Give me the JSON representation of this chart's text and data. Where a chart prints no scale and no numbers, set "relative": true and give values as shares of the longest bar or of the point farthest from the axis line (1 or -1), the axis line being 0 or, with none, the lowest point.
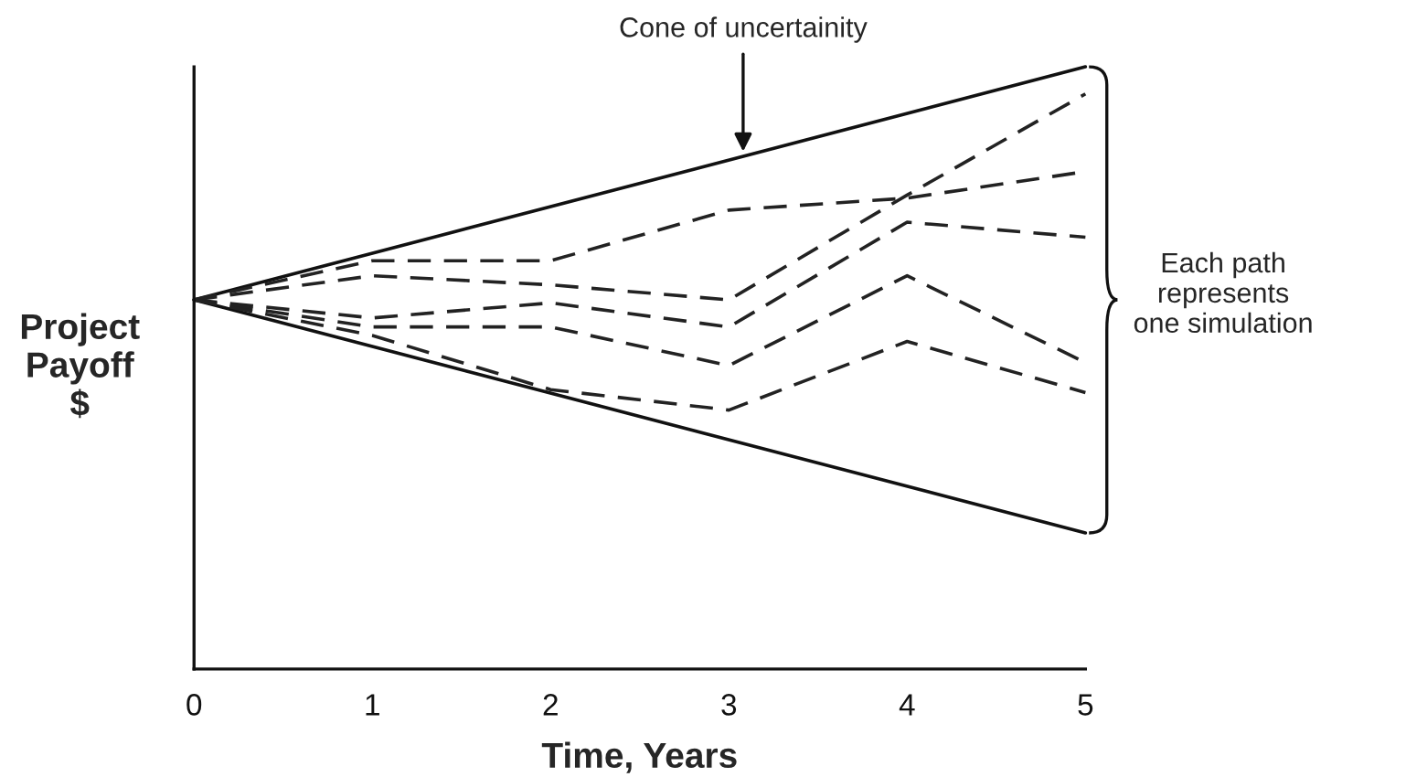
{
  "chart_data": {
    "type": "line",
    "relative": true,
    "xlabel": "Time, Years",
    "ylabel": "Project\nPayoff\n$",
    "xlim": [
      0,
      5
    ],
    "xticks": [
      0,
      1,
      2,
      3,
      4,
      5
    ],
    "legend": false,
    "grid": false,
    "marker": "none",
    "tick_labels": "x",
    "series": [
      {
        "x": [
          0,
          5
        ],
        "values": [
          0.613,
          1.0
        ],
        "color": "#111111",
        "line_style": "solid"
      },
      {
        "x": [
          0,
          5
        ],
        "values": [
          0.613,
          0.226
        ],
        "color": "#111111",
        "line_style": "solid"
      },
      {
        "x": [
          0,
          1,
          2,
          3,
          4,
          5
        ],
        "values": [
          0.613,
          0.678,
          0.678,
          0.762,
          0.782,
          0.826
        ],
        "color": "#222222",
        "line_style": "dashed"
      },
      {
        "x": [
          0,
          1,
          2,
          3,
          4,
          5
        ],
        "values": [
          0.613,
          0.653,
          0.638,
          0.613,
          0.787,
          0.955
        ],
        "color": "#222222",
        "line_style": "dashed"
      },
      {
        "x": [
          0,
          1,
          2,
          3,
          4,
          5
        ],
        "values": [
          0.613,
          0.583,
          0.608,
          0.568,
          0.742,
          0.717
        ],
        "color": "#222222",
        "line_style": "dashed"
      },
      {
        "x": [
          0,
          1,
          2,
          3,
          4,
          5
        ],
        "values": [
          0.613,
          0.568,
          0.568,
          0.504,
          0.653,
          0.509
        ],
        "color": "#222222",
        "line_style": "dashed"
      },
      {
        "x": [
          0,
          1,
          2,
          3,
          4,
          5
        ],
        "values": [
          0.613,
          0.554,
          0.464,
          0.43,
          0.544,
          0.459
        ],
        "color": "#222222",
        "line_style": "dashed"
      }
    ],
    "annotations": [
      {
        "text": "Cone of uncertainity",
        "x": 3.08,
        "y": 0.851
      },
      "Each path\nrepresents\none simulation"
    ]
  }
}
